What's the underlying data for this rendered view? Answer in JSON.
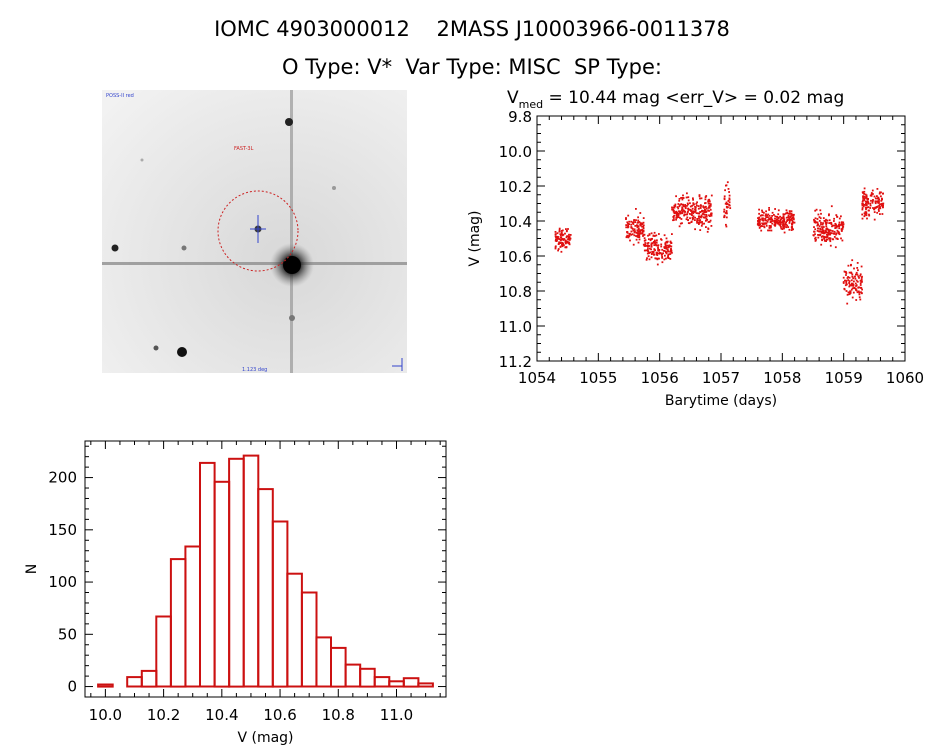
{
  "header": {
    "line1": "IOMC 4903000012    2MASS J10003966-0011378",
    "line2": "O Type: V*  Var Type: MISC  SP Type:"
  },
  "image_panel": {
    "top_left_label": "POSS-II red",
    "marker_label": "FAST-3L",
    "bottom_label": "1.123 deg",
    "colors": {
      "circle": "#cc2222",
      "label": "#3344cc"
    }
  },
  "chart_data": [
    {
      "type": "scatter",
      "title_prefix": "V",
      "title_subscript": "med",
      "title_rest": " = 10.44 mag <err_V> = 0.02 mag",
      "xlabel": "Barytime (days)",
      "ylabel": "V (mag)",
      "xlim": [
        1054,
        1060
      ],
      "ylim": [
        9.8,
        11.2
      ],
      "y_inverted": true,
      "x_ticks": [
        1054,
        1055,
        1056,
        1057,
        1058,
        1059,
        1060
      ],
      "y_ticks": [
        "9.8",
        "10.0",
        "10.2",
        "10.4",
        "10.6",
        "10.8",
        "11.0",
        "11.2"
      ],
      "color": "#e01010",
      "clusters": [
        {
          "x_start": 1054.3,
          "x_end": 1054.55,
          "y_center": 10.5,
          "spread": 0.1
        },
        {
          "x_start": 1055.45,
          "x_end": 1055.75,
          "y_center": 10.45,
          "spread": 0.12
        },
        {
          "x_start": 1055.75,
          "x_end": 1056.2,
          "y_center": 10.55,
          "spread": 0.13
        },
        {
          "x_start": 1056.2,
          "x_end": 1056.85,
          "y_center": 10.35,
          "spread": 0.13
        },
        {
          "x_start": 1057.05,
          "x_end": 1057.15,
          "y_center": 10.3,
          "spread": 0.2
        },
        {
          "x_start": 1057.6,
          "x_end": 1058.2,
          "y_center": 10.4,
          "spread": 0.09
        },
        {
          "x_start": 1058.5,
          "x_end": 1059.0,
          "y_center": 10.45,
          "spread": 0.13
        },
        {
          "x_start": 1059.0,
          "x_end": 1059.3,
          "y_center": 10.75,
          "spread": 0.15
        },
        {
          "x_start": 1059.3,
          "x_end": 1059.65,
          "y_center": 10.3,
          "spread": 0.12
        }
      ]
    },
    {
      "type": "bar",
      "subtype": "histogram",
      "xlabel": "V (mag)",
      "ylabel": "N",
      "xlim": [
        9.93,
        11.17
      ],
      "ylim": [
        -10,
        235
      ],
      "x_ticks": [
        "10.0",
        "10.2",
        "10.4",
        "10.6",
        "10.8",
        "11.0"
      ],
      "y_ticks": [
        0,
        50,
        100,
        150,
        200
      ],
      "bin_width": 0.05,
      "bin_starts": [
        9.975,
        10.075,
        10.125,
        10.175,
        10.225,
        10.275,
        10.325,
        10.375,
        10.425,
        10.475,
        10.525,
        10.575,
        10.625,
        10.675,
        10.725,
        10.775,
        10.825,
        10.875,
        10.925,
        10.975,
        11.025,
        11.075
      ],
      "values": [
        2,
        9,
        15,
        67,
        122,
        134,
        214,
        196,
        218,
        221,
        189,
        158,
        108,
        90,
        47,
        37,
        21,
        17,
        9,
        5,
        8,
        3
      ],
      "color": "#cc1111"
    }
  ]
}
